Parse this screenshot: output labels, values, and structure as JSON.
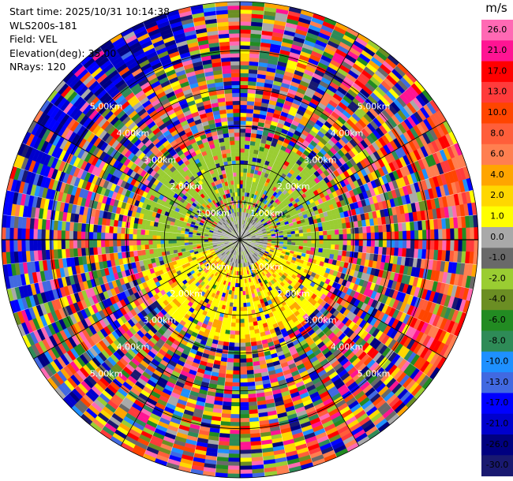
{
  "info": {
    "start_time": "Start time: 2025/10/31 10:14:38",
    "station": "WLS200s-181",
    "field": "Field: VEL",
    "elevation": "Elevation(deg): 35.00",
    "nrays": "NRays: 120"
  },
  "chart_data": {
    "type": "ppi",
    "field": "VEL",
    "units": "m/s",
    "elevation_deg": 35.0,
    "n_rays": 120,
    "range_rings_km": [
      1,
      2,
      3,
      4,
      5
    ],
    "range_labels": [
      "1.00km",
      "2.00km",
      "3.00km",
      "4.00km",
      "5.00km"
    ],
    "colorbar": {
      "unit": "m/s",
      "ticks": [
        "26.0",
        "21.0",
        "17.0",
        "13.0",
        "10.0",
        "8.0",
        "6.0",
        "4.0",
        "2.0",
        "1.0",
        "0.0",
        "-1.0",
        "-2.0",
        "-4.0",
        "-6.0",
        "-8.0",
        "-10.0",
        "-13.0",
        "-17.0",
        "-21.0",
        "-26.0",
        "-30.0"
      ],
      "colors": [
        "#ff69b4",
        "#ff1493",
        "#ff0000",
        "#ff3b3b",
        "#ff4500",
        "#ff5e3a",
        "#ff7f50",
        "#ffa500",
        "#ffd700",
        "#ffff00",
        "#a9a9a9",
        "#696969",
        "#9acd32",
        "#6b8e23",
        "#228b22",
        "#2e8b57",
        "#1e90ff",
        "#4169e1",
        "#0000ff",
        "#0000cd",
        "#000080",
        "#191970"
      ]
    },
    "regions": [
      {
        "sector": "north-west outer",
        "dominant": "negative (blue)"
      },
      {
        "sector": "east outer",
        "dominant": "positive (red/orange)"
      },
      {
        "sector": "north-west inner",
        "dominant": "-2 to -4 (yellow-green)"
      },
      {
        "sector": "south inner",
        "dominant": "2 to 4 (yellow)"
      },
      {
        "sector": "center",
        "dominant": "0 (gray)"
      }
    ]
  }
}
